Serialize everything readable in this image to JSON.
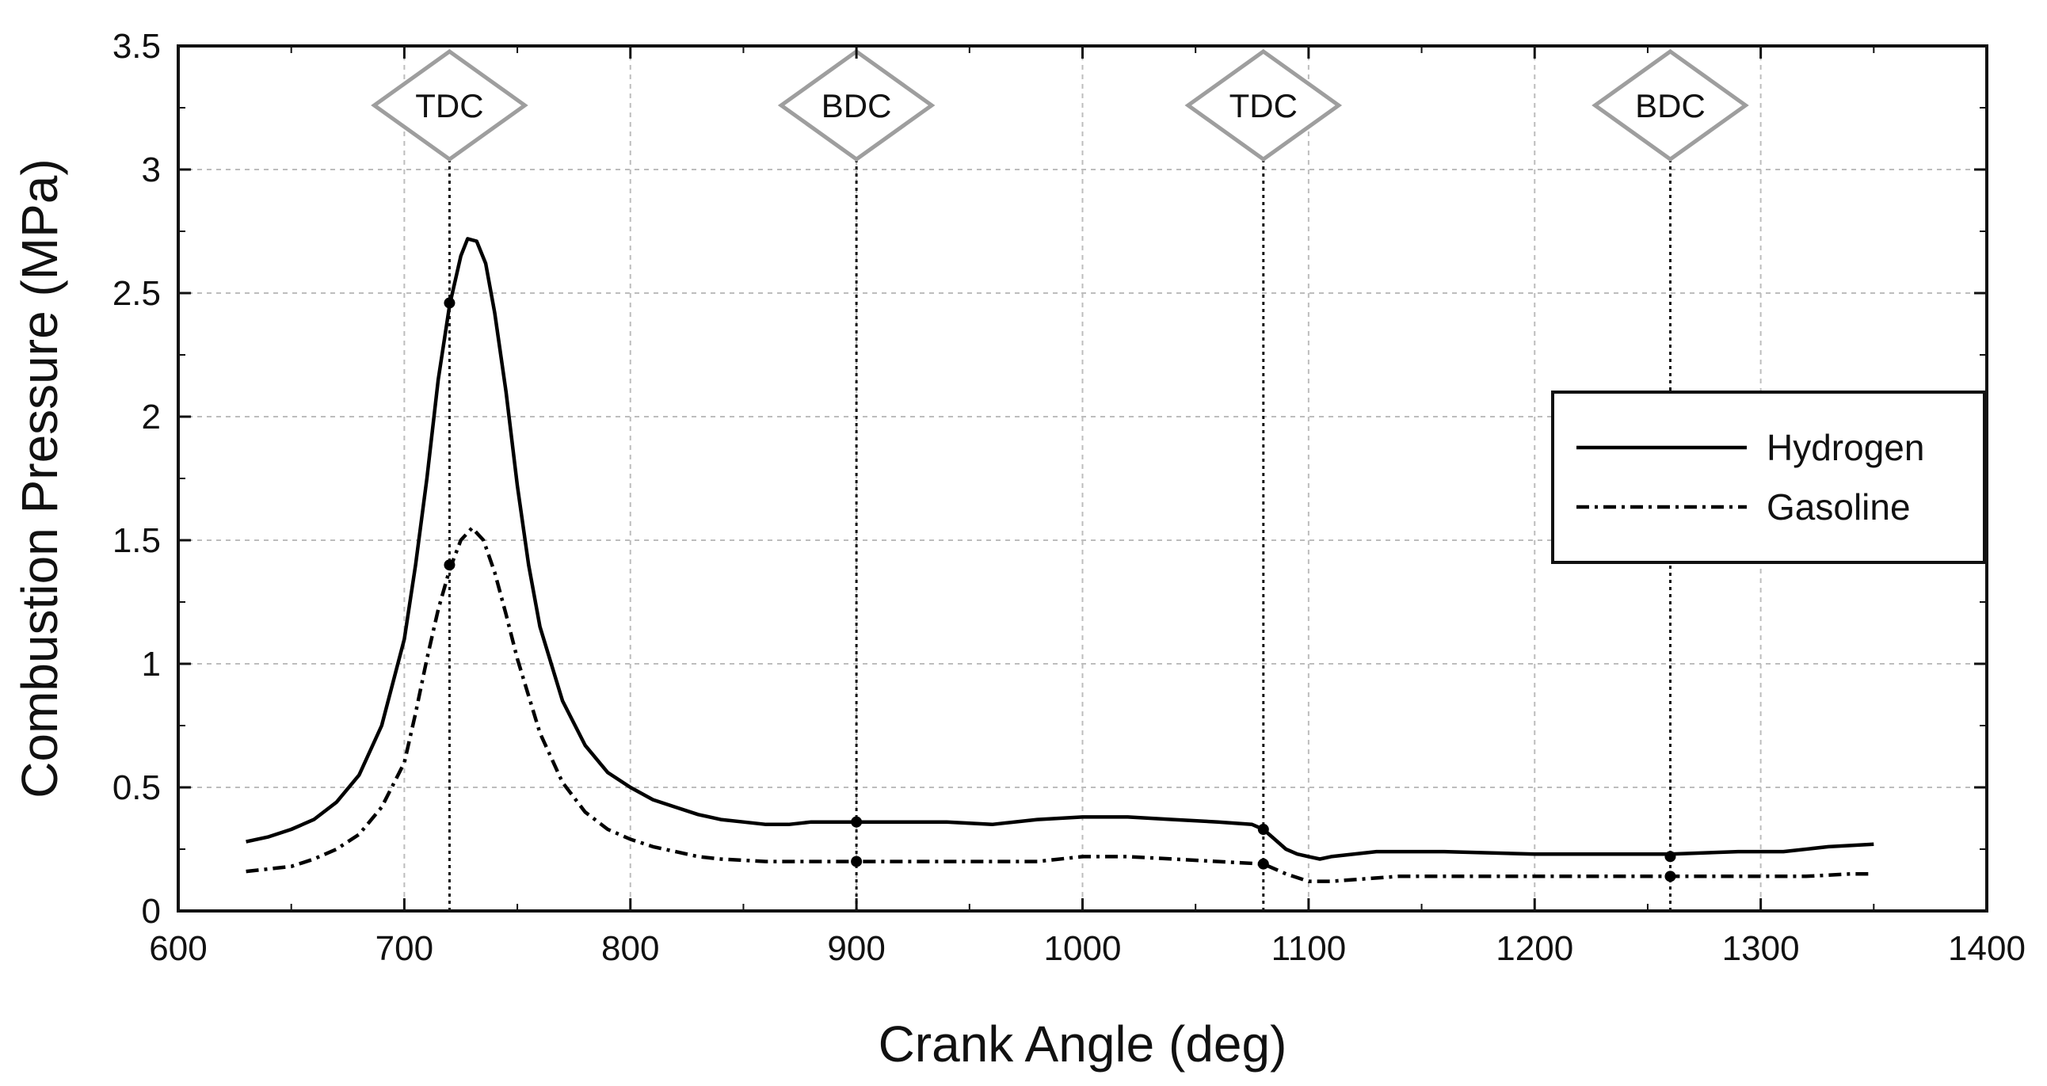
{
  "chart_data": {
    "type": "line",
    "title": "",
    "xlabel": "Crank Angle (deg)",
    "ylabel": "Combustion Pressure (MPa)",
    "xlim": [
      600,
      1400
    ],
    "ylim": [
      0,
      3.5
    ],
    "xticks": [
      "600",
      "700",
      "800",
      "900",
      "1000",
      "1100",
      "1200",
      "1300",
      "1400"
    ],
    "yticks": [
      "0",
      "0.5",
      "1",
      "1.5",
      "2",
      "2.5",
      "3",
      "3.5"
    ],
    "grid": true,
    "legend": "right",
    "markers": [
      {
        "label": "TDC",
        "x": 720
      },
      {
        "label": "BDC",
        "x": 900
      },
      {
        "label": "TDC",
        "x": 1080
      },
      {
        "label": "BDC",
        "x": 1260
      }
    ],
    "series": [
      {
        "name": "Hydrogen",
        "style": "solid",
        "x": [
          630,
          640,
          650,
          660,
          670,
          680,
          690,
          700,
          705,
          710,
          715,
          720,
          725,
          728,
          732,
          736,
          740,
          745,
          750,
          755,
          760,
          770,
          780,
          790,
          800,
          810,
          820,
          830,
          840,
          850,
          860,
          870,
          880,
          900,
          920,
          940,
          960,
          980,
          1000,
          1020,
          1040,
          1060,
          1075,
          1080,
          1085,
          1090,
          1095,
          1100,
          1105,
          1110,
          1130,
          1160,
          1200,
          1230,
          1260,
          1290,
          1310,
          1330,
          1350
        ],
        "y": [
          0.28,
          0.3,
          0.33,
          0.37,
          0.44,
          0.55,
          0.75,
          1.1,
          1.4,
          1.75,
          2.15,
          2.45,
          2.65,
          2.72,
          2.71,
          2.62,
          2.42,
          2.1,
          1.72,
          1.4,
          1.15,
          0.85,
          0.67,
          0.56,
          0.5,
          0.45,
          0.42,
          0.39,
          0.37,
          0.36,
          0.35,
          0.35,
          0.36,
          0.36,
          0.36,
          0.36,
          0.35,
          0.37,
          0.38,
          0.38,
          0.37,
          0.36,
          0.35,
          0.33,
          0.29,
          0.25,
          0.23,
          0.22,
          0.21,
          0.22,
          0.24,
          0.24,
          0.23,
          0.23,
          0.23,
          0.24,
          0.24,
          0.26,
          0.27
        ]
      },
      {
        "name": "Gasoline",
        "style": "dash-dot",
        "x": [
          630,
          640,
          650,
          660,
          670,
          680,
          690,
          700,
          705,
          710,
          715,
          720,
          725,
          730,
          735,
          740,
          745,
          750,
          760,
          770,
          780,
          790,
          800,
          810,
          820,
          830,
          840,
          860,
          880,
          900,
          920,
          940,
          960,
          980,
          1000,
          1020,
          1040,
          1060,
          1080,
          1090,
          1100,
          1110,
          1140,
          1180,
          1220,
          1260,
          1300,
          1320,
          1340,
          1350
        ],
        "y": [
          0.16,
          0.17,
          0.18,
          0.21,
          0.25,
          0.31,
          0.42,
          0.6,
          0.8,
          1.02,
          1.22,
          1.38,
          1.5,
          1.55,
          1.5,
          1.37,
          1.2,
          1.02,
          0.72,
          0.52,
          0.4,
          0.33,
          0.29,
          0.26,
          0.24,
          0.22,
          0.21,
          0.2,
          0.2,
          0.2,
          0.2,
          0.2,
          0.2,
          0.2,
          0.22,
          0.22,
          0.21,
          0.2,
          0.19,
          0.15,
          0.12,
          0.12,
          0.14,
          0.14,
          0.14,
          0.14,
          0.14,
          0.14,
          0.15,
          0.15
        ]
      }
    ],
    "dot_points": [
      {
        "x": 720,
        "y": 2.46
      },
      {
        "x": 720,
        "y": 1.4
      },
      {
        "x": 900,
        "y": 0.36
      },
      {
        "x": 900,
        "y": 0.2
      },
      {
        "x": 1080,
        "y": 0.33
      },
      {
        "x": 1080,
        "y": 0.19
      },
      {
        "x": 1260,
        "y": 0.22
      },
      {
        "x": 1260,
        "y": 0.14
      }
    ]
  }
}
